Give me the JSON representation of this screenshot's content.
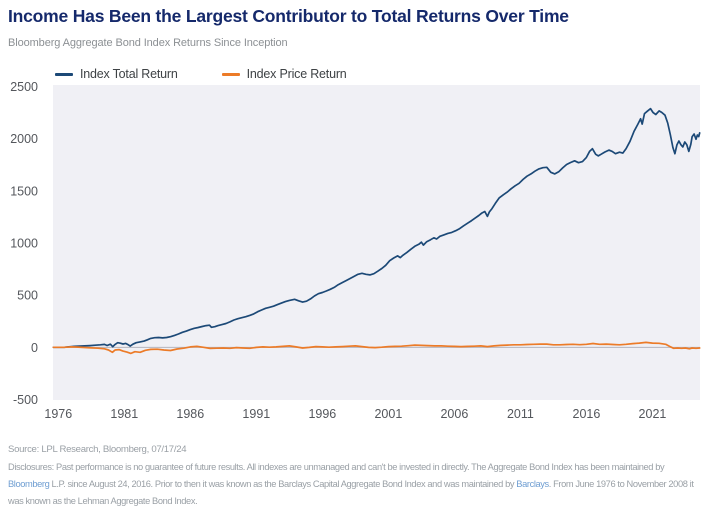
{
  "header": {
    "title": "Income Has Been the Largest Contributor to Total Returns Over Time",
    "subtitle": "Bloomberg Aggregate Bond Index Returns Since Inception"
  },
  "chart_data": {
    "type": "line",
    "title": "Income Has Been the Largest Contributor to Total Returns Over Time",
    "subtitle": "Bloomberg Aggregate Bond Index Returns Since Inception",
    "xlabel": "",
    "ylabel": "",
    "x_range": [
      1975.6,
      2024.6
    ],
    "y_range": [
      -500,
      2500
    ],
    "x_ticks": [
      1976,
      1981,
      1986,
      1991,
      1996,
      2001,
      2006,
      2011,
      2016,
      2021
    ],
    "y_ticks": [
      2500,
      2000,
      1500,
      1000,
      500,
      0,
      -500
    ],
    "grid": "zero-line-only",
    "legend_position": "top-left",
    "plot_bg": "#f0f0f5",
    "zero_line_color": "#b4b4bc",
    "series": [
      {
        "name": "Index Total Return",
        "name_slug": "index-total-return-line",
        "color": "#1c4977",
        "points": [
          [
            1975.62,
            0
          ],
          [
            1976.45,
            0
          ],
          [
            1976.8,
            5
          ],
          [
            1977.2,
            9
          ],
          [
            1977.6,
            12
          ],
          [
            1978,
            14
          ],
          [
            1978.4,
            17
          ],
          [
            1978.8,
            20
          ],
          [
            1979.2,
            24
          ],
          [
            1979.5,
            28
          ],
          [
            1979.7,
            18
          ],
          [
            1979.95,
            30
          ],
          [
            1980.12,
            6
          ],
          [
            1980.3,
            28
          ],
          [
            1980.5,
            44
          ],
          [
            1980.7,
            40
          ],
          [
            1980.9,
            32
          ],
          [
            1981.1,
            38
          ],
          [
            1981.3,
            24
          ],
          [
            1981.45,
            12
          ],
          [
            1981.65,
            30
          ],
          [
            1981.9,
            44
          ],
          [
            1982.2,
            52
          ],
          [
            1982.5,
            60
          ],
          [
            1982.75,
            72
          ],
          [
            1983,
            86
          ],
          [
            1983.3,
            92
          ],
          [
            1983.6,
            94
          ],
          [
            1983.9,
            90
          ],
          [
            1984.2,
            94
          ],
          [
            1984.5,
            102
          ],
          [
            1984.8,
            114
          ],
          [
            1985.1,
            128
          ],
          [
            1985.4,
            144
          ],
          [
            1985.7,
            156
          ],
          [
            1986,
            170
          ],
          [
            1986.3,
            182
          ],
          [
            1986.6,
            190
          ],
          [
            1986.9,
            200
          ],
          [
            1987.2,
            208
          ],
          [
            1987.45,
            212
          ],
          [
            1987.6,
            192
          ],
          [
            1987.85,
            198
          ],
          [
            1988.1,
            208
          ],
          [
            1988.4,
            218
          ],
          [
            1988.7,
            228
          ],
          [
            1989,
            244
          ],
          [
            1989.3,
            262
          ],
          [
            1989.6,
            274
          ],
          [
            1989.9,
            284
          ],
          [
            1990.2,
            294
          ],
          [
            1990.5,
            306
          ],
          [
            1990.8,
            320
          ],
          [
            1991.1,
            342
          ],
          [
            1991.4,
            358
          ],
          [
            1991.7,
            374
          ],
          [
            1992,
            384
          ],
          [
            1992.3,
            394
          ],
          [
            1992.6,
            410
          ],
          [
            1992.9,
            424
          ],
          [
            1993.2,
            438
          ],
          [
            1993.5,
            450
          ],
          [
            1993.9,
            460
          ],
          [
            1994.2,
            446
          ],
          [
            1994.5,
            434
          ],
          [
            1994.8,
            442
          ],
          [
            1995.1,
            464
          ],
          [
            1995.4,
            492
          ],
          [
            1995.7,
            514
          ],
          [
            1996,
            526
          ],
          [
            1996.3,
            540
          ],
          [
            1996.6,
            556
          ],
          [
            1996.9,
            574
          ],
          [
            1997.2,
            600
          ],
          [
            1997.5,
            620
          ],
          [
            1997.8,
            640
          ],
          [
            1998.1,
            660
          ],
          [
            1998.4,
            680
          ],
          [
            1998.7,
            700
          ],
          [
            1999,
            710
          ],
          [
            1999.3,
            700
          ],
          [
            1999.6,
            694
          ],
          [
            1999.9,
            706
          ],
          [
            2000.2,
            730
          ],
          [
            2000.5,
            756
          ],
          [
            2000.8,
            786
          ],
          [
            2001.1,
            830
          ],
          [
            2001.4,
            856
          ],
          [
            2001.7,
            876
          ],
          [
            2001.9,
            860
          ],
          [
            2002.1,
            882
          ],
          [
            2002.4,
            910
          ],
          [
            2002.7,
            940
          ],
          [
            2003,
            968
          ],
          [
            2003.3,
            988
          ],
          [
            2003.5,
            1008
          ],
          [
            2003.65,
            980
          ],
          [
            2003.9,
            1012
          ],
          [
            2004.2,
            1032
          ],
          [
            2004.45,
            1050
          ],
          [
            2004.65,
            1038
          ],
          [
            2004.9,
            1064
          ],
          [
            2005.2,
            1078
          ],
          [
            2005.5,
            1092
          ],
          [
            2005.8,
            1102
          ],
          [
            2006.1,
            1118
          ],
          [
            2006.4,
            1138
          ],
          [
            2006.7,
            1165
          ],
          [
            2007,
            1190
          ],
          [
            2007.3,
            1215
          ],
          [
            2007.6,
            1242
          ],
          [
            2007.85,
            1264
          ],
          [
            2008.05,
            1285
          ],
          [
            2008.3,
            1302
          ],
          [
            2008.5,
            1255
          ],
          [
            2008.65,
            1298
          ],
          [
            2008.85,
            1330
          ],
          [
            2009.1,
            1380
          ],
          [
            2009.4,
            1433
          ],
          [
            2009.7,
            1462
          ],
          [
            2010,
            1488
          ],
          [
            2010.3,
            1520
          ],
          [
            2010.6,
            1548
          ],
          [
            2010.9,
            1572
          ],
          [
            2011.2,
            1610
          ],
          [
            2011.5,
            1640
          ],
          [
            2011.8,
            1662
          ],
          [
            2012.1,
            1688
          ],
          [
            2012.4,
            1710
          ],
          [
            2012.7,
            1722
          ],
          [
            2013,
            1726
          ],
          [
            2013.3,
            1678
          ],
          [
            2013.6,
            1662
          ],
          [
            2013.9,
            1682
          ],
          [
            2014.2,
            1720
          ],
          [
            2014.5,
            1752
          ],
          [
            2014.8,
            1772
          ],
          [
            2015.1,
            1788
          ],
          [
            2015.4,
            1770
          ],
          [
            2015.7,
            1780
          ],
          [
            2016,
            1820
          ],
          [
            2016.25,
            1880
          ],
          [
            2016.45,
            1904
          ],
          [
            2016.7,
            1850
          ],
          [
            2016.9,
            1835
          ],
          [
            2017.1,
            1850
          ],
          [
            2017.4,
            1872
          ],
          [
            2017.7,
            1890
          ],
          [
            2017.95,
            1878
          ],
          [
            2018.2,
            1856
          ],
          [
            2018.5,
            1870
          ],
          [
            2018.75,
            1862
          ],
          [
            2019,
            1905
          ],
          [
            2019.3,
            1975
          ],
          [
            2019.6,
            2070
          ],
          [
            2019.9,
            2140
          ],
          [
            2020.1,
            2190
          ],
          [
            2020.22,
            2140
          ],
          [
            2020.4,
            2240
          ],
          [
            2020.6,
            2262
          ],
          [
            2020.85,
            2288
          ],
          [
            2021.05,
            2250
          ],
          [
            2021.25,
            2232
          ],
          [
            2021.5,
            2266
          ],
          [
            2021.7,
            2252
          ],
          [
            2021.95,
            2225
          ],
          [
            2022.15,
            2150
          ],
          [
            2022.35,
            2040
          ],
          [
            2022.55,
            1915
          ],
          [
            2022.7,
            1856
          ],
          [
            2022.85,
            1940
          ],
          [
            2023,
            1978
          ],
          [
            2023.15,
            1942
          ],
          [
            2023.3,
            1920
          ],
          [
            2023.45,
            1968
          ],
          [
            2023.6,
            1942
          ],
          [
            2023.75,
            1878
          ],
          [
            2023.9,
            1945
          ],
          [
            2024,
            2018
          ],
          [
            2024.15,
            2045
          ],
          [
            2024.3,
            1995
          ],
          [
            2024.4,
            2035
          ],
          [
            2024.5,
            2020
          ],
          [
            2024.58,
            2055
          ]
        ]
      },
      {
        "name": "Index Price Return",
        "name_slug": "index-price-return-line",
        "color": "#ec7b28",
        "points": [
          [
            1975.62,
            0
          ],
          [
            1976.45,
            0
          ],
          [
            1977,
            4
          ],
          [
            1977.5,
            2
          ],
          [
            1978,
            -2
          ],
          [
            1978.5,
            -5
          ],
          [
            1979,
            -8
          ],
          [
            1979.5,
            -14
          ],
          [
            1979.8,
            -26
          ],
          [
            1980.1,
            -48
          ],
          [
            1980.3,
            -26
          ],
          [
            1980.6,
            -22
          ],
          [
            1980.9,
            -36
          ],
          [
            1981.2,
            -46
          ],
          [
            1981.5,
            -58
          ],
          [
            1981.8,
            -42
          ],
          [
            1982.2,
            -48
          ],
          [
            1982.6,
            -28
          ],
          [
            1983,
            -20
          ],
          [
            1983.5,
            -18
          ],
          [
            1984,
            -26
          ],
          [
            1984.5,
            -30
          ],
          [
            1985,
            -16
          ],
          [
            1985.5,
            -8
          ],
          [
            1986,
            4
          ],
          [
            1986.5,
            9
          ],
          [
            1987,
            0
          ],
          [
            1987.5,
            -10
          ],
          [
            1988,
            -8
          ],
          [
            1988.5,
            -6
          ],
          [
            1989,
            -9
          ],
          [
            1989.5,
            -3
          ],
          [
            1990,
            -6
          ],
          [
            1990.5,
            -9
          ],
          [
            1991,
            -1
          ],
          [
            1991.5,
            4
          ],
          [
            1992,
            1
          ],
          [
            1992.5,
            4
          ],
          [
            1993,
            9
          ],
          [
            1993.5,
            14
          ],
          [
            1994,
            4
          ],
          [
            1994.5,
            -6
          ],
          [
            1995,
            -1
          ],
          [
            1995.5,
            7
          ],
          [
            1996,
            4
          ],
          [
            1996.5,
            1
          ],
          [
            1997,
            4
          ],
          [
            1997.5,
            7
          ],
          [
            1998,
            11
          ],
          [
            1998.5,
            14
          ],
          [
            1999,
            7
          ],
          [
            1999.5,
            -1
          ],
          [
            2000,
            -3
          ],
          [
            2000.5,
            1
          ],
          [
            2001,
            7
          ],
          [
            2001.5,
            9
          ],
          [
            2002,
            11
          ],
          [
            2002.5,
            16
          ],
          [
            2003,
            21
          ],
          [
            2003.5,
            19
          ],
          [
            2004,
            17
          ],
          [
            2004.5,
            14
          ],
          [
            2005,
            14
          ],
          [
            2005.5,
            11
          ],
          [
            2006,
            9
          ],
          [
            2006.5,
            7
          ],
          [
            2007,
            9
          ],
          [
            2007.5,
            11
          ],
          [
            2008,
            14
          ],
          [
            2008.5,
            7
          ],
          [
            2009,
            14
          ],
          [
            2009.5,
            19
          ],
          [
            2010,
            21
          ],
          [
            2010.5,
            24
          ],
          [
            2011,
            24
          ],
          [
            2011.5,
            27
          ],
          [
            2012,
            29
          ],
          [
            2012.5,
            31
          ],
          [
            2013,
            31
          ],
          [
            2013.5,
            24
          ],
          [
            2014,
            24
          ],
          [
            2014.5,
            27
          ],
          [
            2015,
            29
          ],
          [
            2015.5,
            25
          ],
          [
            2016,
            29
          ],
          [
            2016.5,
            37
          ],
          [
            2017,
            29
          ],
          [
            2017.5,
            31
          ],
          [
            2018,
            27
          ],
          [
            2018.5,
            24
          ],
          [
            2019,
            29
          ],
          [
            2019.5,
            36
          ],
          [
            2020,
            41
          ],
          [
            2020.5,
            47
          ],
          [
            2021,
            41
          ],
          [
            2021.5,
            39
          ],
          [
            2022,
            29
          ],
          [
            2022.3,
            9
          ],
          [
            2022.6,
            -9
          ],
          [
            2022.9,
            -6
          ],
          [
            2023.2,
            -9
          ],
          [
            2023.5,
            -6
          ],
          [
            2023.8,
            -14
          ],
          [
            2024,
            -6
          ],
          [
            2024.3,
            -9
          ],
          [
            2024.58,
            -6
          ]
        ]
      }
    ]
  },
  "footer": {
    "source": "Source: LPL Research, Bloomberg, 07/17/24",
    "disclosure": {
      "seg1": "Disclosures: Past performance is no guarantee of future results. All indexes are unmanaged and can't be invested in directly. The Aggregate Bond Index has been maintained by ",
      "link1": "Bloomberg",
      "seg2": " L.P. since August 24, 2016. Prior to then it was known as the Barclays Capital Aggregate Bond Index and was maintained by ",
      "link2": "Barclays",
      "seg3": ". From June 1976 to November 2008 it was known as the Lehman Aggregate Bond Index."
    }
  }
}
